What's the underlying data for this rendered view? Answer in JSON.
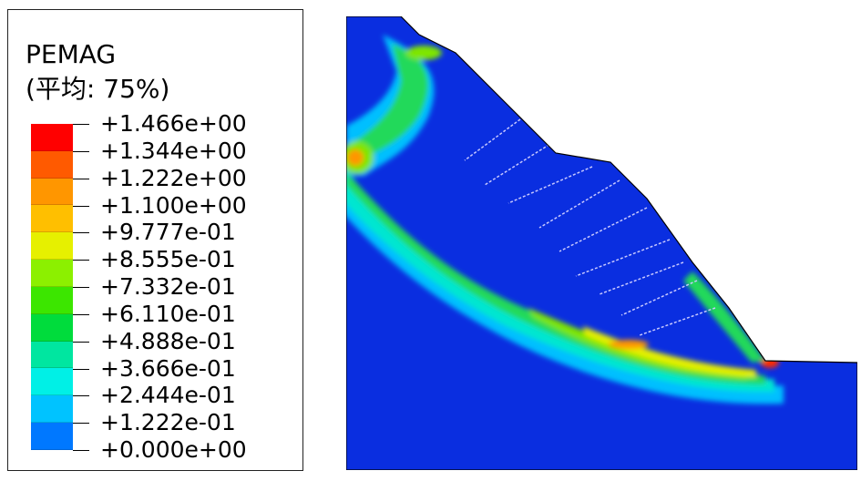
{
  "legend": {
    "title": "PEMAG",
    "subtitle": "(平均: 75%)",
    "levels": [
      {
        "label": "+1.466e+00",
        "color": "#ff0000"
      },
      {
        "label": "+1.344e+00",
        "color": "#ff5a00"
      },
      {
        "label": "+1.222e+00",
        "color": "#ff9600"
      },
      {
        "label": "+1.100e+00",
        "color": "#ffbf00"
      },
      {
        "label": "+9.777e-01",
        "color": "#e6f000"
      },
      {
        "label": "+8.555e-01",
        "color": "#8cf000"
      },
      {
        "label": "+7.332e-01",
        "color": "#3ce600"
      },
      {
        "label": "+6.110e-01",
        "color": "#00dc3c"
      },
      {
        "label": "+4.888e-01",
        "color": "#00e6a0"
      },
      {
        "label": "+3.666e-01",
        "color": "#00f0e6"
      },
      {
        "label": "+2.444e-01",
        "color": "#00c3ff"
      },
      {
        "label": "+1.222e-01",
        "color": "#0078ff"
      },
      {
        "label": "+0.000e+00",
        "color": "#0000ff"
      }
    ]
  },
  "colors": {
    "background_field": "#0a2ee0",
    "band_light_blue": "#00bfff",
    "band_cyan": "#00e6d0",
    "band_green": "#22d95a",
    "band_lime": "#7ee600",
    "band_yellow": "#e6f000",
    "band_orange": "#ff9600",
    "band_red": "#ff2a00",
    "anchors": "#c8c8ff"
  }
}
